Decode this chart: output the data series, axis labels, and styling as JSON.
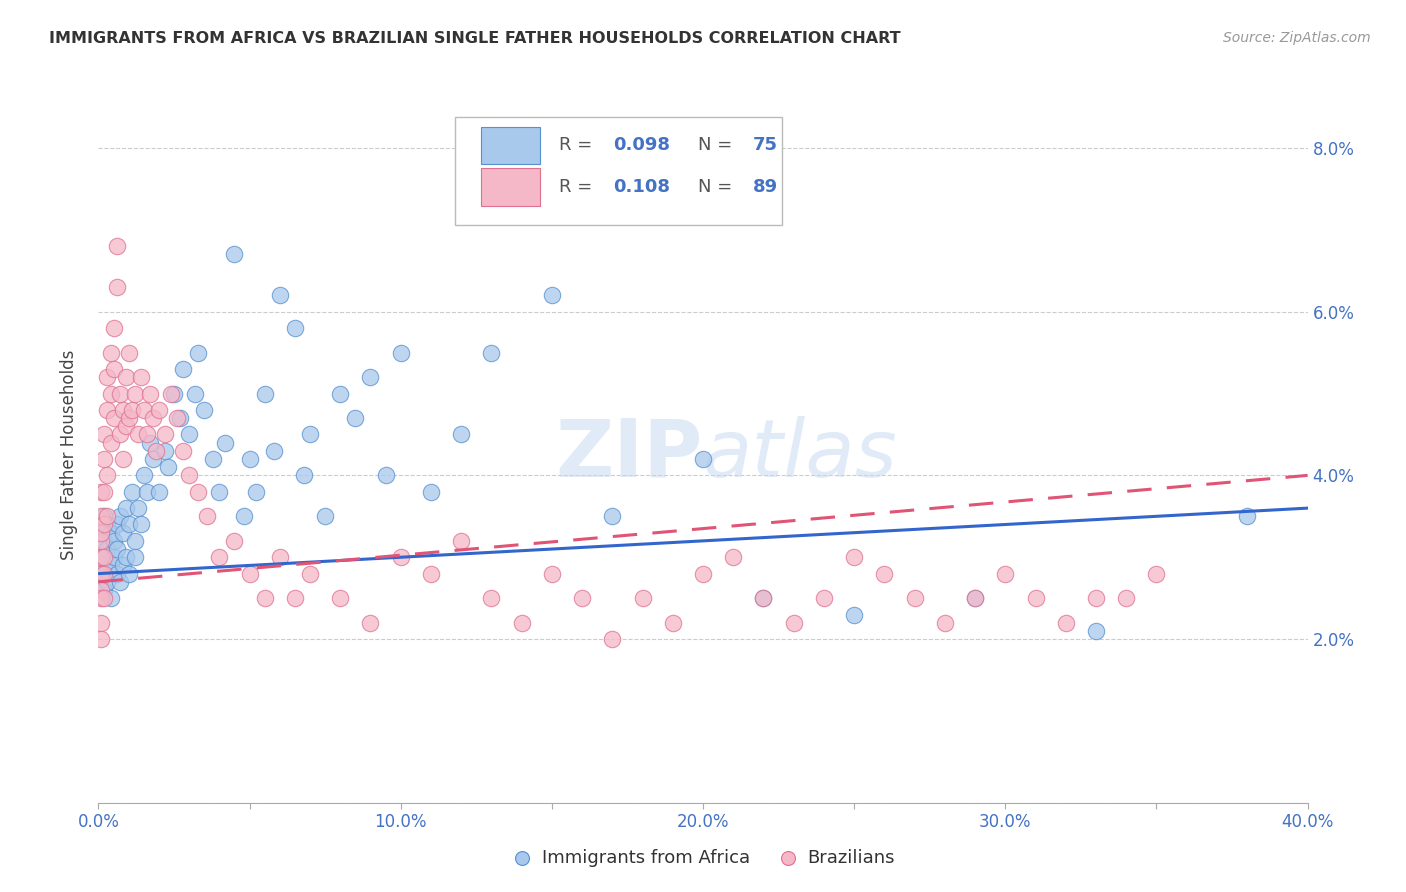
{
  "title": "IMMIGRANTS FROM AFRICA VS BRAZILIAN SINGLE FATHER HOUSEHOLDS CORRELATION CHART",
  "source": "Source: ZipAtlas.com",
  "ylabel": "Single Father Households",
  "xlim": [
    0.0,
    0.4
  ],
  "ylim": [
    0.0,
    0.085
  ],
  "xticks": [
    0.0,
    0.05,
    0.1,
    0.15,
    0.2,
    0.25,
    0.3,
    0.35,
    0.4
  ],
  "xticklabels": [
    "0.0%",
    "",
    "10.0%",
    "",
    "20.0%",
    "",
    "30.0%",
    "",
    "40.0%"
  ],
  "yticks": [
    0.0,
    0.02,
    0.04,
    0.06,
    0.08
  ],
  "yticklabels": [
    "",
    "2.0%",
    "4.0%",
    "6.0%",
    "8.0%"
  ],
  "legend_r1": "0.098",
  "legend_n1": "75",
  "legend_r2": "0.108",
  "legend_n2": "89",
  "color_blue": "#a8c8ec",
  "color_pink": "#f4b8c8",
  "edge_blue": "#5590d0",
  "edge_pink": "#e07090",
  "line_blue": "#3366cc",
  "line_pink": "#e05575",
  "watermark": "ZIPatlas",
  "africa_x": [
    0.001,
    0.001,
    0.001,
    0.002,
    0.002,
    0.002,
    0.002,
    0.003,
    0.003,
    0.003,
    0.004,
    0.004,
    0.004,
    0.005,
    0.005,
    0.006,
    0.006,
    0.006,
    0.007,
    0.007,
    0.008,
    0.008,
    0.009,
    0.009,
    0.01,
    0.01,
    0.011,
    0.012,
    0.012,
    0.013,
    0.014,
    0.015,
    0.016,
    0.017,
    0.018,
    0.02,
    0.022,
    0.023,
    0.025,
    0.027,
    0.028,
    0.03,
    0.032,
    0.033,
    0.035,
    0.038,
    0.04,
    0.042,
    0.045,
    0.048,
    0.05,
    0.052,
    0.055,
    0.058,
    0.06,
    0.065,
    0.068,
    0.07,
    0.075,
    0.08,
    0.085,
    0.09,
    0.095,
    0.1,
    0.11,
    0.12,
    0.13,
    0.15,
    0.17,
    0.2,
    0.22,
    0.25,
    0.29,
    0.33,
    0.38
  ],
  "africa_y": [
    0.03,
    0.028,
    0.033,
    0.029,
    0.032,
    0.026,
    0.035,
    0.031,
    0.027,
    0.034,
    0.029,
    0.033,
    0.025,
    0.032,
    0.03,
    0.034,
    0.028,
    0.031,
    0.035,
    0.027,
    0.033,
    0.029,
    0.036,
    0.03,
    0.034,
    0.028,
    0.038,
    0.032,
    0.03,
    0.036,
    0.034,
    0.04,
    0.038,
    0.044,
    0.042,
    0.038,
    0.043,
    0.041,
    0.05,
    0.047,
    0.053,
    0.045,
    0.05,
    0.055,
    0.048,
    0.042,
    0.038,
    0.044,
    0.067,
    0.035,
    0.042,
    0.038,
    0.05,
    0.043,
    0.062,
    0.058,
    0.04,
    0.045,
    0.035,
    0.05,
    0.047,
    0.052,
    0.04,
    0.055,
    0.038,
    0.045,
    0.055,
    0.062,
    0.035,
    0.042,
    0.025,
    0.023,
    0.025,
    0.021,
    0.035
  ],
  "brazil_x": [
    0.001,
    0.001,
    0.001,
    0.001,
    0.001,
    0.001,
    0.001,
    0.001,
    0.001,
    0.001,
    0.002,
    0.002,
    0.002,
    0.002,
    0.002,
    0.002,
    0.002,
    0.003,
    0.003,
    0.003,
    0.003,
    0.004,
    0.004,
    0.004,
    0.005,
    0.005,
    0.005,
    0.006,
    0.006,
    0.007,
    0.007,
    0.008,
    0.008,
    0.009,
    0.009,
    0.01,
    0.01,
    0.011,
    0.012,
    0.013,
    0.014,
    0.015,
    0.016,
    0.017,
    0.018,
    0.019,
    0.02,
    0.022,
    0.024,
    0.026,
    0.028,
    0.03,
    0.033,
    0.036,
    0.04,
    0.045,
    0.05,
    0.055,
    0.06,
    0.065,
    0.07,
    0.08,
    0.09,
    0.1,
    0.11,
    0.12,
    0.13,
    0.14,
    0.15,
    0.16,
    0.17,
    0.18,
    0.19,
    0.2,
    0.21,
    0.22,
    0.23,
    0.24,
    0.25,
    0.26,
    0.27,
    0.28,
    0.29,
    0.3,
    0.31,
    0.32,
    0.33,
    0.34,
    0.35
  ],
  "brazil_y": [
    0.028,
    0.032,
    0.035,
    0.038,
    0.026,
    0.03,
    0.022,
    0.025,
    0.02,
    0.033,
    0.03,
    0.034,
    0.038,
    0.025,
    0.042,
    0.028,
    0.045,
    0.035,
    0.048,
    0.04,
    0.052,
    0.044,
    0.05,
    0.055,
    0.047,
    0.053,
    0.058,
    0.063,
    0.068,
    0.045,
    0.05,
    0.048,
    0.042,
    0.052,
    0.046,
    0.055,
    0.047,
    0.048,
    0.05,
    0.045,
    0.052,
    0.048,
    0.045,
    0.05,
    0.047,
    0.043,
    0.048,
    0.045,
    0.05,
    0.047,
    0.043,
    0.04,
    0.038,
    0.035,
    0.03,
    0.032,
    0.028,
    0.025,
    0.03,
    0.025,
    0.028,
    0.025,
    0.022,
    0.03,
    0.028,
    0.032,
    0.025,
    0.022,
    0.028,
    0.025,
    0.02,
    0.025,
    0.022,
    0.028,
    0.03,
    0.025,
    0.022,
    0.025,
    0.03,
    0.028,
    0.025,
    0.022,
    0.025,
    0.028,
    0.025,
    0.022,
    0.025,
    0.025,
    0.028
  ]
}
